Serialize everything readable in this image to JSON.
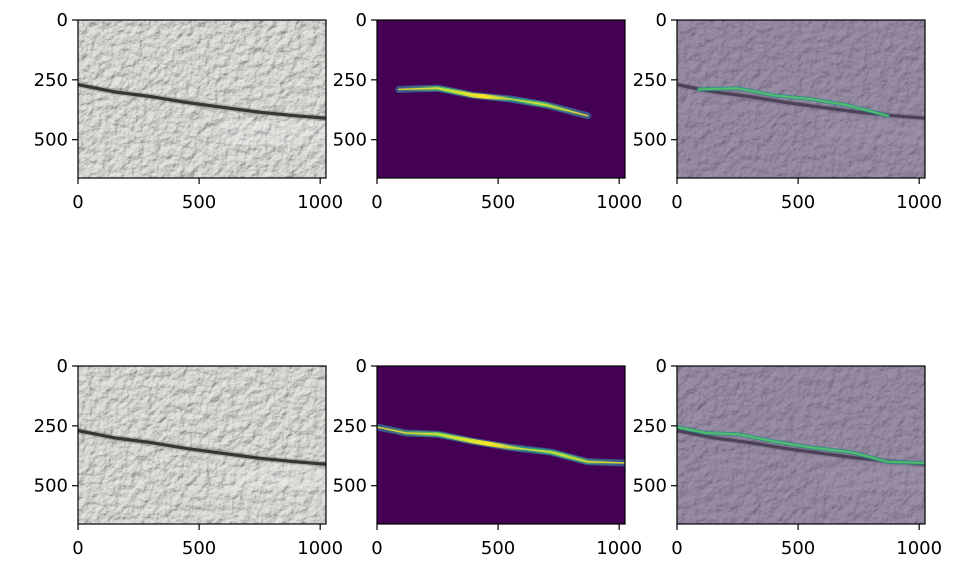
{
  "figure": {
    "grid": {
      "rows": 2,
      "cols": 3
    },
    "colors": {
      "concrete_light": "#d7d6d4",
      "concrete_mid": "#a9a8a6",
      "concrete_dark": "#6e6d6b",
      "crack": "#1c1a18",
      "viridis_background": "#440154",
      "viridis_low": "#3b528b",
      "viridis_mid": "#21918c",
      "viridis_high": "#5ec962",
      "viridis_max": "#fde725",
      "overlay_tint": "#5e4a78"
    }
  },
  "chart_data": [
    {
      "type": "image",
      "content": "concrete-photo",
      "xticks": [
        0,
        500,
        1000
      ],
      "yticks": [
        0,
        250,
        500
      ],
      "xticklabels": [
        "0",
        "500",
        "1000"
      ],
      "yticklabels": [
        "0",
        "250",
        "500"
      ],
      "xlim": [
        0,
        1024
      ],
      "ylim": [
        660,
        0
      ],
      "crack_path": [
        [
          0,
          270
        ],
        [
          150,
          300
        ],
        [
          300,
          320
        ],
        [
          450,
          345
        ],
        [
          600,
          365
        ],
        [
          750,
          385
        ],
        [
          900,
          400
        ],
        [
          1024,
          410
        ]
      ]
    },
    {
      "type": "heatmap",
      "content": "crack-mask",
      "xticks": [
        0,
        500,
        1000
      ],
      "yticks": [
        0,
        250,
        500
      ],
      "xticklabels": [
        "0",
        "500",
        "1000"
      ],
      "yticklabels": [
        "0",
        "250",
        "500"
      ],
      "xlim": [
        0,
        1024
      ],
      "ylim": [
        660,
        0
      ],
      "crack_path": [
        [
          90,
          290
        ],
        [
          250,
          285
        ],
        [
          400,
          315
        ],
        [
          550,
          330
        ],
        [
          700,
          355
        ],
        [
          870,
          400
        ]
      ]
    },
    {
      "type": "image",
      "content": "overlay",
      "xticks": [
        0,
        500,
        1000
      ],
      "yticks": [
        0,
        250,
        500
      ],
      "xticklabels": [
        "0",
        "500",
        "1000"
      ],
      "yticklabels": [
        "0",
        "250",
        "500"
      ],
      "xlim": [
        0,
        1024
      ],
      "ylim": [
        660,
        0
      ],
      "crack_path": [
        [
          0,
          270
        ],
        [
          150,
          300
        ],
        [
          300,
          320
        ],
        [
          450,
          345
        ],
        [
          600,
          365
        ],
        [
          750,
          385
        ],
        [
          900,
          400
        ],
        [
          1024,
          410
        ]
      ],
      "mask_path": [
        [
          90,
          290
        ],
        [
          250,
          285
        ],
        [
          400,
          315
        ],
        [
          550,
          330
        ],
        [
          700,
          355
        ],
        [
          870,
          400
        ]
      ]
    },
    {
      "type": "image",
      "content": "concrete-photo",
      "xticks": [
        0,
        500,
        1000
      ],
      "yticks": [
        0,
        250,
        500
      ],
      "xticklabels": [
        "0",
        "500",
        "1000"
      ],
      "yticklabels": [
        "0",
        "250",
        "500"
      ],
      "xlim": [
        0,
        1024
      ],
      "ylim": [
        660,
        0
      ],
      "crack_path": [
        [
          0,
          270
        ],
        [
          150,
          300
        ],
        [
          300,
          320
        ],
        [
          450,
          345
        ],
        [
          600,
          365
        ],
        [
          750,
          385
        ],
        [
          900,
          400
        ],
        [
          1024,
          410
        ]
      ]
    },
    {
      "type": "heatmap",
      "content": "crack-mask",
      "xticks": [
        0,
        500,
        1000
      ],
      "yticks": [
        0,
        250,
        500
      ],
      "xticklabels": [
        "0",
        "500",
        "1000"
      ],
      "yticklabels": [
        "0",
        "250",
        "500"
      ],
      "xlim": [
        0,
        1024
      ],
      "ylim": [
        660,
        0
      ],
      "crack_path": [
        [
          0,
          255
        ],
        [
          120,
          280
        ],
        [
          250,
          285
        ],
        [
          400,
          315
        ],
        [
          550,
          340
        ],
        [
          720,
          360
        ],
        [
          870,
          400
        ],
        [
          1024,
          405
        ]
      ]
    },
    {
      "type": "image",
      "content": "overlay",
      "xticks": [
        0,
        500,
        1000
      ],
      "yticks": [
        0,
        250,
        500
      ],
      "xticklabels": [
        "0",
        "500",
        "1000"
      ],
      "yticklabels": [
        "0",
        "250",
        "500"
      ],
      "xlim": [
        0,
        1024
      ],
      "ylim": [
        660,
        0
      ],
      "crack_path": [
        [
          0,
          270
        ],
        [
          150,
          300
        ],
        [
          300,
          320
        ],
        [
          450,
          345
        ],
        [
          600,
          365
        ],
        [
          750,
          385
        ],
        [
          900,
          400
        ],
        [
          1024,
          410
        ]
      ],
      "mask_path": [
        [
          0,
          255
        ],
        [
          120,
          280
        ],
        [
          250,
          285
        ],
        [
          400,
          315
        ],
        [
          550,
          340
        ],
        [
          720,
          360
        ],
        [
          870,
          400
        ],
        [
          1024,
          405
        ]
      ]
    }
  ]
}
